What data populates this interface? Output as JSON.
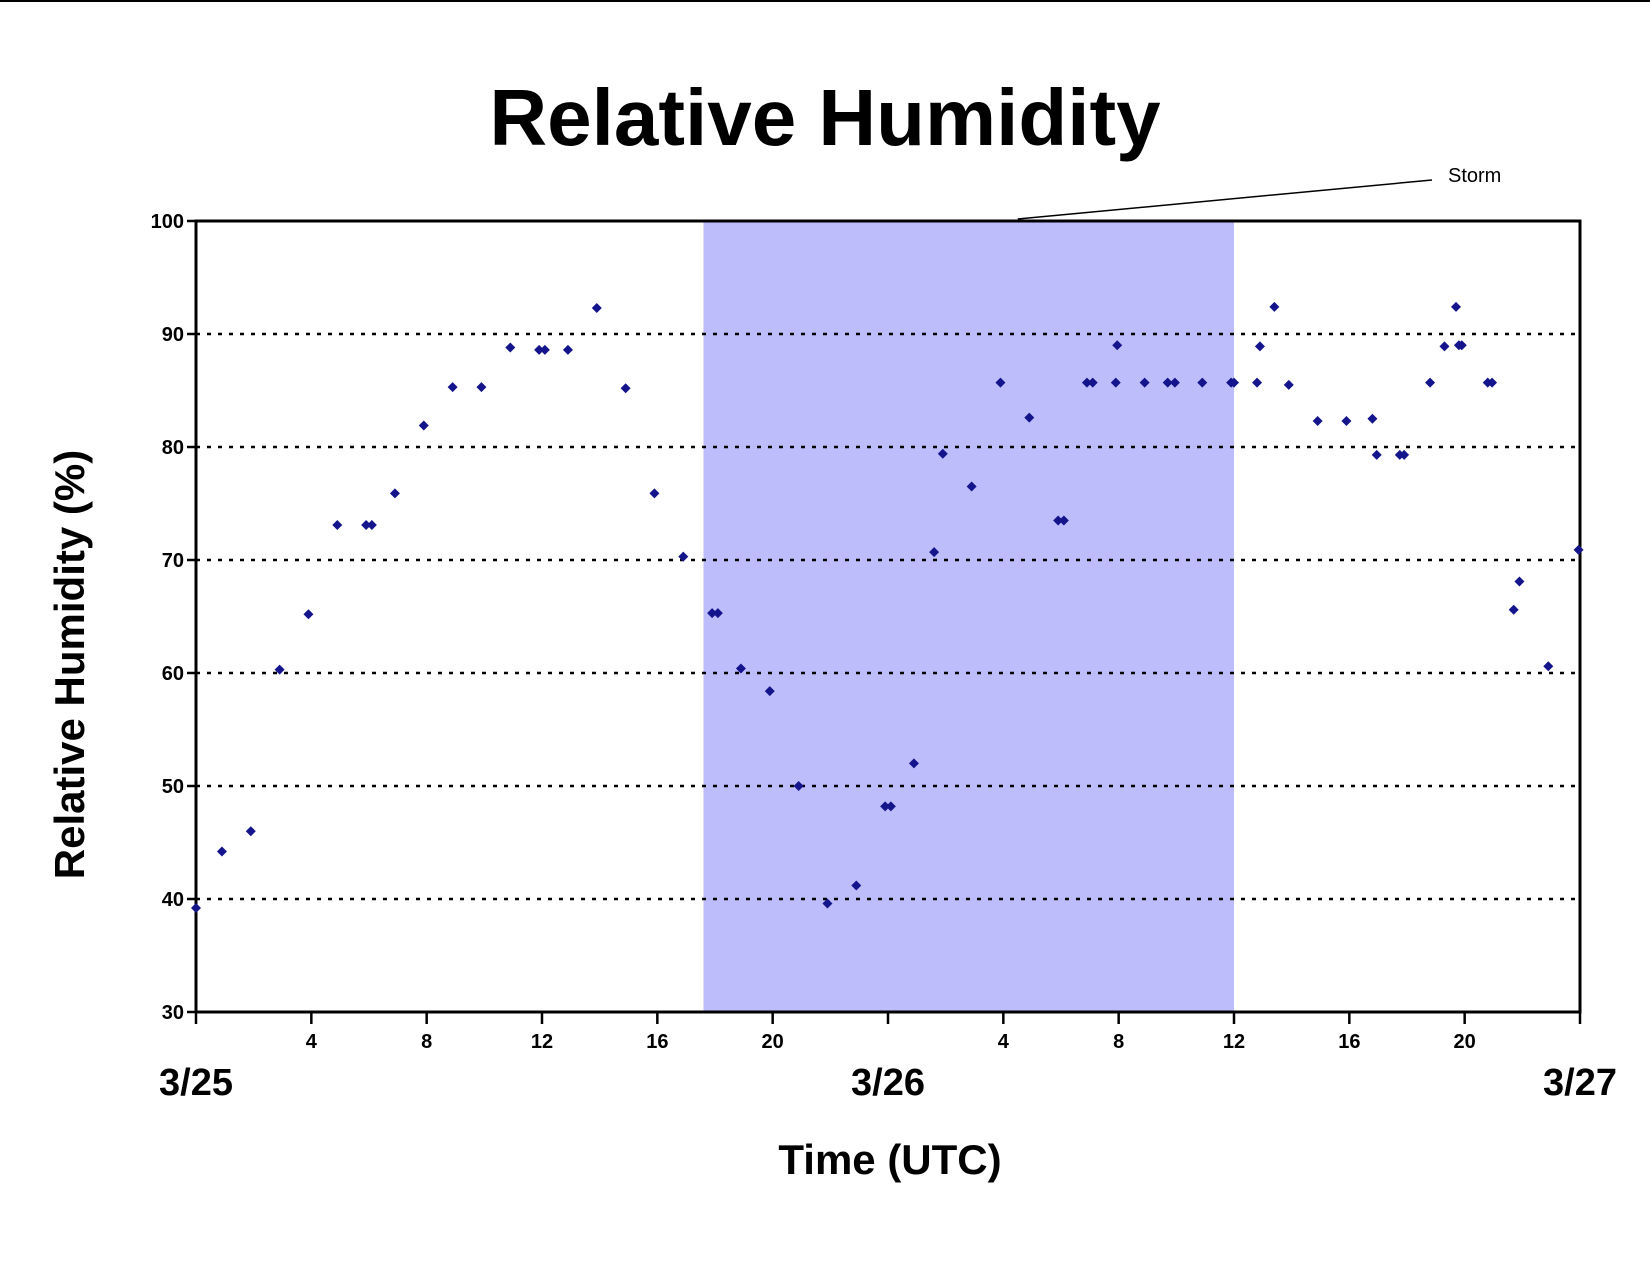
{
  "chart_data": {
    "type": "scatter",
    "title": "Relative Humidity",
    "xlabel": "Time (UTC)",
    "ylabel": "Relative Humidity (%)",
    "ylim": [
      30,
      100
    ],
    "yticks": [
      30,
      40,
      50,
      60,
      70,
      80,
      90,
      100
    ],
    "xlim_hours": [
      0,
      48
    ],
    "x_unit": "hours after 3/25 00 UTC",
    "xticks": [
      {
        "hour": 0,
        "label": ""
      },
      {
        "hour": 4,
        "label": "4"
      },
      {
        "hour": 8,
        "label": "8"
      },
      {
        "hour": 12,
        "label": "12"
      },
      {
        "hour": 16,
        "label": "16"
      },
      {
        "hour": 20,
        "label": "20"
      },
      {
        "hour": 24,
        "label": ""
      },
      {
        "hour": 28,
        "label": "4"
      },
      {
        "hour": 32,
        "label": "8"
      },
      {
        "hour": 36,
        "label": "12"
      },
      {
        "hour": 40,
        "label": "16"
      },
      {
        "hour": 44,
        "label": "20"
      },
      {
        "hour": 48,
        "label": ""
      }
    ],
    "day_labels": [
      {
        "hour": 0,
        "label": "3/25"
      },
      {
        "hour": 24,
        "label": "3/26"
      },
      {
        "hour": 48,
        "label": "3/27"
      }
    ],
    "grid": {
      "horizontal": true,
      "style": "dotted"
    },
    "shaded_region": {
      "label": "Storm",
      "x_start_hour": 17.6,
      "x_end_hour": 36,
      "color": "#bebdfc"
    },
    "marker_color": "#14148c",
    "points": [
      [
        0.0,
        39.2
      ],
      [
        0.9,
        44.2
      ],
      [
        1.9,
        46.0
      ],
      [
        2.9,
        60.3
      ],
      [
        3.9,
        65.2
      ],
      [
        4.9,
        73.1
      ],
      [
        5.9,
        73.1
      ],
      [
        6.1,
        73.1
      ],
      [
        6.9,
        75.9
      ],
      [
        7.9,
        81.9
      ],
      [
        8.9,
        85.3
      ],
      [
        9.9,
        85.3
      ],
      [
        10.9,
        88.8
      ],
      [
        11.9,
        88.6
      ],
      [
        12.1,
        88.6
      ],
      [
        12.9,
        88.6
      ],
      [
        13.9,
        92.3
      ],
      [
        14.9,
        85.2
      ],
      [
        15.9,
        75.9
      ],
      [
        16.9,
        70.3
      ],
      [
        17.9,
        65.3
      ],
      [
        18.1,
        65.3
      ],
      [
        18.9,
        60.4
      ],
      [
        19.9,
        58.4
      ],
      [
        20.9,
        50.0
      ],
      [
        21.9,
        39.6
      ],
      [
        22.9,
        41.2
      ],
      [
        23.9,
        48.2
      ],
      [
        24.1,
        48.2
      ],
      [
        24.9,
        52.0
      ],
      [
        25.6,
        70.7
      ],
      [
        25.9,
        79.4
      ],
      [
        26.9,
        76.5
      ],
      [
        27.9,
        85.7
      ],
      [
        28.9,
        82.6
      ],
      [
        29.9,
        73.5
      ],
      [
        30.1,
        73.5
      ],
      [
        30.9,
        85.7
      ],
      [
        31.1,
        85.7
      ],
      [
        31.9,
        85.7
      ],
      [
        31.95,
        89.0
      ],
      [
        32.9,
        85.7
      ],
      [
        33.7,
        85.7
      ],
      [
        33.95,
        85.7
      ],
      [
        34.9,
        85.7
      ],
      [
        35.9,
        85.7
      ],
      [
        36.0,
        85.7
      ],
      [
        36.8,
        85.7
      ],
      [
        36.9,
        88.9
      ],
      [
        37.4,
        92.4
      ],
      [
        37.9,
        85.5
      ],
      [
        38.9,
        82.3
      ],
      [
        39.9,
        82.3
      ],
      [
        40.8,
        82.5
      ],
      [
        40.95,
        79.3
      ],
      [
        41.75,
        79.3
      ],
      [
        41.9,
        79.3
      ],
      [
        42.8,
        85.7
      ],
      [
        43.3,
        88.9
      ],
      [
        43.7,
        92.4
      ],
      [
        43.8,
        89.0
      ],
      [
        43.9,
        89.0
      ],
      [
        44.8,
        85.7
      ],
      [
        44.95,
        85.7
      ],
      [
        45.7,
        65.6
      ],
      [
        45.9,
        68.1
      ],
      [
        46.9,
        60.6
      ],
      [
        47.95,
        70.9
      ]
    ]
  }
}
